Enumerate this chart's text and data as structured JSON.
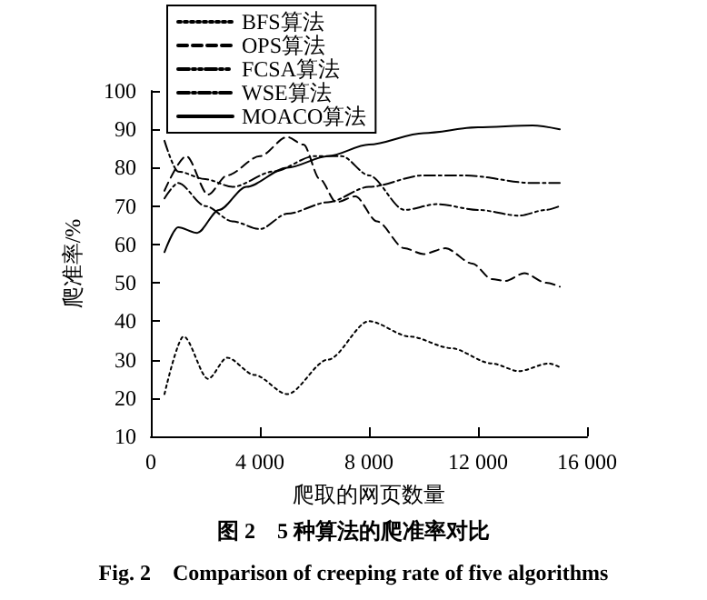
{
  "chart_data": {
    "type": "line",
    "title": "图 2　5 种算法的爬准率对比",
    "subtitle": "Fig. 2　Comparison of creeping rate of five algorithms",
    "xlabel": "爬取的网页数量",
    "ylabel": "爬准率/%",
    "xlim": [
      0,
      16000
    ],
    "xticks": [
      {
        "value": 0,
        "label": "0"
      },
      {
        "value": 4000,
        "label": "4 000"
      },
      {
        "value": 8000,
        "label": "8 000"
      },
      {
        "value": 12000,
        "label": "12 000"
      },
      {
        "value": 16000,
        "label": "16 000"
      }
    ],
    "ylim": [
      10,
      100
    ],
    "yticks": [
      10,
      20,
      30,
      40,
      50,
      60,
      70,
      80,
      90,
      100
    ],
    "grid": false,
    "legend": "top left",
    "marker": "none",
    "series": [
      {
        "name": "BFS算法",
        "color": "#000000",
        "line_style": "dotted",
        "x": [
          500,
          1200,
          2100,
          2800,
          3800,
          5000,
          6500,
          8000,
          9500,
          11000,
          12500,
          13500,
          14600,
          15000
        ],
        "values": [
          21,
          36,
          25,
          30.5,
          26,
          21,
          30,
          40,
          36,
          33,
          29,
          27,
          29,
          28
        ]
      },
      {
        "name": "OPS算法",
        "color": "#000000",
        "line_style": "dashed",
        "x": [
          500,
          1300,
          2100,
          2800,
          4000,
          5000,
          5600,
          6200,
          6800,
          7500,
          8300,
          9300,
          10000,
          10800,
          11800,
          12500,
          13000,
          13700,
          14500,
          15000
        ],
        "values": [
          74,
          83,
          73,
          78,
          83,
          88,
          86,
          77,
          71,
          72.5,
          66,
          59,
          57.5,
          59,
          55,
          51,
          50.5,
          52.5,
          50,
          49
        ]
      },
      {
        "name": "FCSA算法",
        "color": "#000000",
        "line_style": "dashdotdot",
        "x": [
          500,
          1000,
          2000,
          3000,
          4500,
          6000,
          7000,
          8000,
          9300,
          10500,
          12000,
          13500,
          14500,
          15000
        ],
        "values": [
          87,
          79,
          77,
          75,
          79,
          83,
          83,
          78,
          69,
          70.5,
          69,
          67.5,
          69,
          70
        ]
      },
      {
        "name": "WSE算法",
        "color": "#000000",
        "line_style": "dashdot",
        "x": [
          500,
          1000,
          2000,
          3000,
          4000,
          5000,
          6500,
          8000,
          10000,
          11500,
          14000,
          15000
        ],
        "values": [
          72,
          76,
          70,
          66,
          64,
          68,
          71,
          75,
          78,
          78,
          76,
          76
        ]
      },
      {
        "name": "MOACO算法",
        "color": "#000000",
        "line_style": "solid",
        "x": [
          500,
          1000,
          1700,
          2500,
          3500,
          5000,
          6500,
          8000,
          10000,
          12000,
          14000,
          15000
        ],
        "values": [
          58,
          64.5,
          63,
          69,
          75,
          80,
          83,
          86,
          89,
          90.5,
          91,
          90
        ]
      }
    ]
  }
}
